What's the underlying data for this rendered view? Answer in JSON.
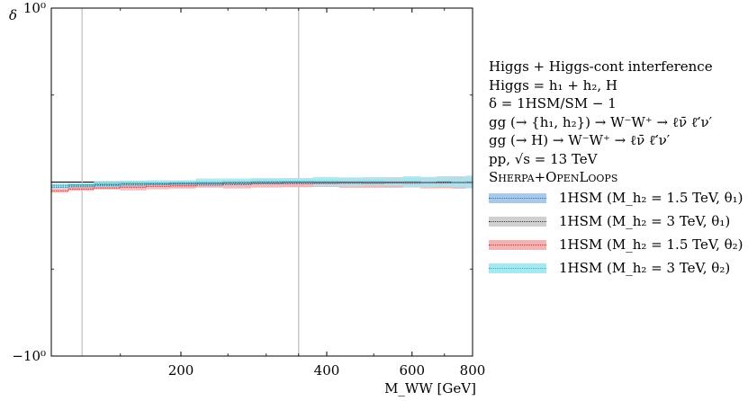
{
  "chart_data": {
    "type": "line",
    "x_scale": "log",
    "y_scale": "symlog",
    "xlim": [
      108,
      800
    ],
    "ylim": [
      -1,
      1
    ],
    "xlabel": "M_WW [GeV]",
    "ylabel": "δ",
    "xticks": [
      {
        "value": 200,
        "label": "200"
      },
      {
        "value": 400,
        "label": "400"
      },
      {
        "value": 600,
        "label": "600"
      },
      {
        "value": 800,
        "label": "800"
      }
    ],
    "yticks": [
      {
        "value": 1,
        "label": "10⁰"
      },
      {
        "value": -1,
        "label": "−10⁰"
      }
    ],
    "reference_lines": {
      "horizontal_y": 0,
      "vertical_x": [
        125,
        350
      ]
    },
    "x": [
      110,
      125,
      140,
      160,
      180,
      200,
      230,
      260,
      300,
      350,
      400,
      450,
      500,
      550,
      600,
      650,
      700,
      750,
      800
    ],
    "series": [
      {
        "name": "1HSM (M_h2 = 1.5 TeV, θ1)",
        "color": "#1f77b4",
        "band": "#a9c8ea",
        "values": [
          -0.03,
          -0.027,
          -0.022,
          -0.018,
          -0.015,
          -0.013,
          -0.011,
          -0.009,
          -0.006,
          -0.004,
          -0.004,
          -0.003,
          -0.004,
          -0.003,
          -0.002,
          -0.003,
          -0.002,
          -0.003,
          -0.002
        ]
      },
      {
        "name": "1HSM (M_h2 = 3 TeV, θ1)",
        "color": "#333333",
        "band": "#d0d0d0",
        "values": [
          -0.02,
          -0.018,
          -0.014,
          -0.011,
          -0.009,
          -0.008,
          -0.006,
          -0.004,
          -0.002,
          -0.001,
          -0.002,
          -0.001,
          -0.002,
          -0.001,
          -0.001,
          -0.002,
          0.0,
          -0.001,
          0.0
        ]
      },
      {
        "name": "1HSM (M_h2 = 1.5 TeV, θ2)",
        "color": "#d62728",
        "band": "#f4b3b3",
        "values": [
          -0.05,
          -0.04,
          -0.034,
          -0.03,
          -0.025,
          -0.022,
          -0.018,
          -0.014,
          -0.01,
          -0.009,
          -0.008,
          -0.006,
          -0.007,
          -0.005,
          -0.006,
          -0.004,
          -0.005,
          -0.003,
          -0.004
        ]
      },
      {
        "name": "1HSM (M_h2 = 3 TeV, θ2)",
        "color": "#17becf",
        "band": "#a6e7f0",
        "values": [
          -0.02,
          -0.015,
          -0.01,
          -0.007,
          -0.005,
          -0.003,
          -0.001,
          0.001,
          0.003,
          0.004,
          0.003,
          0.002,
          0.003,
          0.001,
          0.002,
          0.0,
          0.002,
          -0.001,
          0.001
        ]
      }
    ]
  },
  "legend": {
    "lines": [
      "Higgs + Higgs-cont interference",
      "Higgs = h₁ + h₂, H",
      "δ = 1HSM/SM − 1",
      "gg (→ {h₁, h₂}) → W⁻W⁺ → ℓν̄ ℓ̄′ν′",
      "gg (→ H) → W⁻W⁺ → ℓν̄ ℓ̄′ν′",
      "pp, √s = 13 TeV"
    ],
    "tool": "Sherpa+OpenLoops",
    "entries": [
      "1HSM (M_h₂ = 1.5 TeV, θ₁)",
      "1HSM (M_h₂ = 3 TeV, θ₁)",
      "1HSM (M_h₂ = 1.5 TeV, θ₂)",
      "1HSM (M_h₂ = 3 TeV, θ₂)"
    ]
  }
}
